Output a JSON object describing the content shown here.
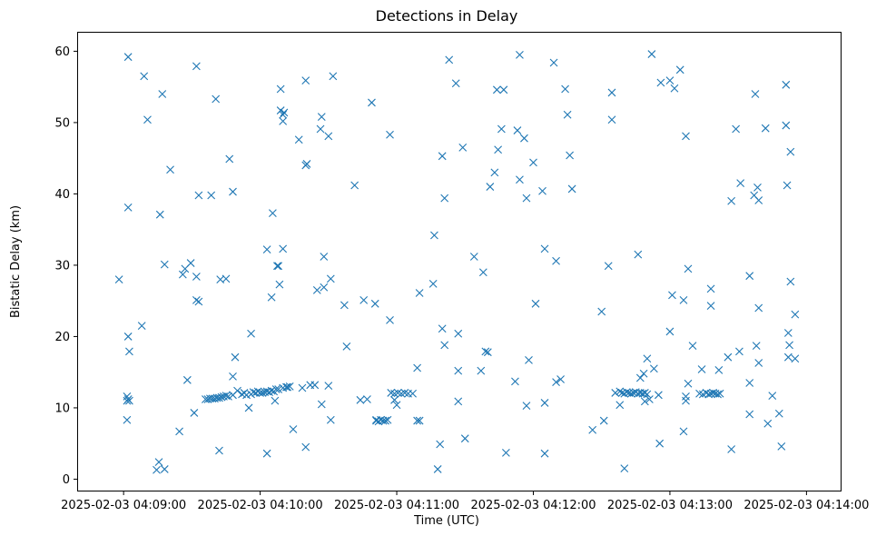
{
  "chart_data": {
    "type": "scatter",
    "title": "Detections in Delay",
    "xlabel": "Time (UTC)",
    "ylabel": "Bistatic Delay (km)",
    "marker": "x",
    "color": "#1f77b4",
    "x_unit": "seconds after 2025-02-03 04:09:00",
    "xlim": [
      -20,
      315
    ],
    "ylim": [
      -1.6,
      62.6
    ],
    "x_ticks": [
      {
        "value": 0,
        "label": "2025-02-03 04:09:00"
      },
      {
        "value": 60,
        "label": "2025-02-03 04:10:00"
      },
      {
        "value": 120,
        "label": "2025-02-03 04:11:00"
      },
      {
        "value": 180,
        "label": "2025-02-03 04:12:00"
      },
      {
        "value": 240,
        "label": "2025-02-03 04:13:00"
      },
      {
        "value": 300,
        "label": "2025-02-03 04:14:00"
      }
    ],
    "y_ticks": [
      {
        "value": 0,
        "label": "0"
      },
      {
        "value": 10,
        "label": "10"
      },
      {
        "value": 20,
        "label": "20"
      },
      {
        "value": 30,
        "label": "30"
      },
      {
        "value": 40,
        "label": "40"
      },
      {
        "value": 50,
        "label": "50"
      },
      {
        "value": 60,
        "label": "60"
      }
    ],
    "points": [
      [
        -2,
        28
      ],
      [
        2,
        59.2
      ],
      [
        2,
        38.1
      ],
      [
        1.5,
        11.6
      ],
      [
        1.5,
        11
      ],
      [
        2,
        11.2
      ],
      [
        2.5,
        11
      ],
      [
        1.5,
        8.3
      ],
      [
        2,
        20
      ],
      [
        2.5,
        17.9
      ],
      [
        8,
        21.5
      ],
      [
        9,
        56.5
      ],
      [
        10.5,
        50.4
      ],
      [
        14.5,
        1.3
      ],
      [
        15.5,
        2.4
      ],
      [
        16,
        37.1
      ],
      [
        17,
        54
      ],
      [
        18,
        30.1
      ],
      [
        18,
        1.4
      ],
      [
        20.5,
        43.4
      ],
      [
        24.5,
        6.7
      ],
      [
        26,
        28.7
      ],
      [
        27,
        29.5
      ],
      [
        28,
        13.9
      ],
      [
        29.5,
        30.3
      ],
      [
        31,
        9.3
      ],
      [
        32,
        57.9
      ],
      [
        32,
        28.4
      ],
      [
        32,
        25.1
      ],
      [
        33,
        24.9
      ],
      [
        33,
        39.8
      ],
      [
        38.5,
        39.8
      ],
      [
        40.5,
        53.3
      ],
      [
        42,
        4
      ],
      [
        42.5,
        28
      ],
      [
        45,
        28.1
      ],
      [
        46.5,
        44.9
      ],
      [
        48,
        40.3
      ],
      [
        48,
        14.4
      ],
      [
        49,
        17.1
      ],
      [
        63,
        32.2
      ],
      [
        63,
        3.6
      ],
      [
        65.5,
        37.3
      ],
      [
        65,
        25.5
      ],
      [
        66.5,
        11
      ],
      [
        67.5,
        29.9
      ],
      [
        68.5,
        27.3
      ],
      [
        69,
        54.7
      ],
      [
        69,
        51.7
      ],
      [
        70,
        32.3
      ],
      [
        70,
        50.2
      ],
      [
        70.5,
        51.4
      ],
      [
        70,
        51.1
      ],
      [
        72,
        12.9
      ],
      [
        74.5,
        7
      ],
      [
        77,
        47.6
      ],
      [
        78.5,
        12.8
      ],
      [
        80,
        55.9
      ],
      [
        80,
        4.5
      ],
      [
        80,
        44
      ],
      [
        80.5,
        44.2
      ],
      [
        82,
        13.2
      ],
      [
        84,
        13.2
      ],
      [
        85,
        26.5
      ],
      [
        87,
        50.8
      ],
      [
        86.5,
        49.1
      ],
      [
        87,
        10.5
      ],
      [
        88,
        31.2
      ],
      [
        88,
        26.9
      ],
      [
        90,
        48.1
      ],
      [
        91,
        8.3
      ],
      [
        91,
        28.1
      ],
      [
        92,
        56.5
      ],
      [
        97,
        24.4
      ],
      [
        98,
        18.6
      ],
      [
        101.5,
        41.2
      ],
      [
        104,
        11.1
      ],
      [
        105.5,
        25.1
      ],
      [
        107,
        11.2
      ],
      [
        109,
        52.8
      ],
      [
        110.5,
        24.6
      ],
      [
        111,
        8.3
      ],
      [
        111,
        8.2
      ],
      [
        112,
        8.1
      ],
      [
        113,
        8.3
      ],
      [
        114,
        8.2
      ],
      [
        115,
        8.2
      ],
      [
        116,
        8.3
      ],
      [
        117,
        22.3
      ],
      [
        117,
        48.3
      ],
      [
        119,
        11.1
      ],
      [
        120,
        10.4
      ],
      [
        117.5,
        12.1
      ],
      [
        119,
        12
      ],
      [
        120.5,
        12.1
      ],
      [
        122,
        12
      ],
      [
        123.5,
        12.1
      ],
      [
        125,
        12
      ],
      [
        127,
        12
      ],
      [
        129,
        15.6
      ],
      [
        129,
        8.2
      ],
      [
        130,
        8.2
      ],
      [
        130,
        26.1
      ],
      [
        136.5,
        34.2
      ],
      [
        136,
        27.4
      ],
      [
        138,
        1.4
      ],
      [
        139,
        4.9
      ],
      [
        140,
        45.3
      ],
      [
        140,
        21.1
      ],
      [
        141,
        18.8
      ],
      [
        141,
        39.4
      ],
      [
        143,
        58.8
      ],
      [
        146,
        55.5
      ],
      [
        147,
        10.9
      ],
      [
        147,
        15.2
      ],
      [
        147,
        20.4
      ],
      [
        149,
        46.5
      ],
      [
        150,
        5.7
      ],
      [
        154,
        31.2
      ],
      [
        158,
        29
      ],
      [
        159,
        17.9
      ],
      [
        160,
        17.8
      ],
      [
        161,
        41
      ],
      [
        157,
        15.2
      ],
      [
        163,
        43
      ],
      [
        164,
        54.6
      ],
      [
        164.5,
        46.2
      ],
      [
        166,
        49.1
      ],
      [
        167,
        54.6
      ],
      [
        168,
        3.7
      ],
      [
        172,
        13.7
      ],
      [
        173,
        48.9
      ],
      [
        174,
        42
      ],
      [
        174,
        59.5
      ],
      [
        176,
        47.8
      ],
      [
        177,
        39.4
      ],
      [
        177,
        10.3
      ],
      [
        178,
        16.7
      ],
      [
        180,
        44.4
      ],
      [
        181,
        24.6
      ],
      [
        184,
        40.4
      ],
      [
        185,
        32.3
      ],
      [
        185,
        10.7
      ],
      [
        185,
        3.6
      ],
      [
        189,
        58.4
      ],
      [
        190,
        30.6
      ],
      [
        190,
        13.6
      ],
      [
        192,
        14
      ],
      [
        194,
        54.7
      ],
      [
        195,
        51.1
      ],
      [
        196,
        45.4
      ],
      [
        197,
        40.7
      ],
      [
        206,
        6.9
      ],
      [
        210,
        23.5
      ],
      [
        211,
        8.2
      ],
      [
        213,
        29.9
      ],
      [
        214.5,
        50.4
      ],
      [
        214.5,
        54.2
      ],
      [
        216,
        12.1
      ],
      [
        218,
        10.4
      ],
      [
        218,
        12.3
      ],
      [
        219,
        12.1
      ],
      [
        220,
        12
      ],
      [
        220,
        1.5
      ],
      [
        221,
        12.2
      ],
      [
        222,
        12.1
      ],
      [
        223,
        12
      ],
      [
        224,
        12.1
      ],
      [
        225,
        12.2
      ],
      [
        226,
        12
      ],
      [
        227,
        12.1
      ],
      [
        228,
        12
      ],
      [
        229,
        12.1
      ],
      [
        230,
        11.9
      ],
      [
        226,
        31.5
      ],
      [
        227,
        14.2
      ],
      [
        228.5,
        14.8
      ],
      [
        229,
        10.9
      ],
      [
        230,
        16.9
      ],
      [
        231,
        11.2
      ],
      [
        232,
        59.6
      ],
      [
        233,
        15.5
      ],
      [
        235,
        11.8
      ],
      [
        235.5,
        5
      ],
      [
        236,
        55.6
      ],
      [
        240,
        20.7
      ],
      [
        240,
        55.9
      ],
      [
        241,
        25.8
      ],
      [
        242,
        54.8
      ],
      [
        244.5,
        57.4
      ],
      [
        246,
        6.7
      ],
      [
        246,
        25.1
      ],
      [
        247,
        11.6
      ],
      [
        247,
        11
      ],
      [
        247,
        48.1
      ],
      [
        248,
        29.5
      ],
      [
        248,
        13.4
      ],
      [
        250,
        18.7
      ],
      [
        254,
        15.4
      ],
      [
        253,
        12
      ],
      [
        254.5,
        11.9
      ],
      [
        256,
        12.1
      ],
      [
        257,
        11.9
      ],
      [
        258,
        12
      ],
      [
        259,
        12.1
      ],
      [
        260,
        12
      ],
      [
        261,
        11.9
      ],
      [
        262,
        12
      ],
      [
        258,
        26.7
      ],
      [
        258,
        24.3
      ],
      [
        261.5,
        15.3
      ],
      [
        265.5,
        17.1
      ],
      [
        267,
        39
      ],
      [
        267,
        4.2
      ],
      [
        269,
        49.1
      ],
      [
        270.5,
        17.9
      ],
      [
        271,
        41.5
      ],
      [
        275,
        13.5
      ],
      [
        275,
        28.5
      ],
      [
        275,
        9.1
      ],
      [
        277,
        39.8
      ],
      [
        277.5,
        54
      ],
      [
        278,
        18.7
      ],
      [
        278.5,
        40.9
      ],
      [
        279,
        16.3
      ],
      [
        279,
        24
      ],
      [
        279,
        39.1
      ],
      [
        282,
        49.2
      ],
      [
        283,
        7.8
      ],
      [
        285,
        11.7
      ],
      [
        288,
        9.2
      ],
      [
        289,
        4.6
      ],
      [
        291,
        55.3
      ],
      [
        291,
        49.6
      ],
      [
        291.5,
        41.2
      ],
      [
        292,
        20.5
      ],
      [
        292,
        17.1
      ],
      [
        292.5,
        18.8
      ],
      [
        293,
        27.7
      ],
      [
        293,
        45.9
      ],
      [
        295,
        16.9
      ],
      [
        295,
        23.1
      ],
      [
        90,
        13.1
      ],
      [
        68,
        12.6
      ],
      [
        64,
        12.2
      ],
      [
        66,
        12.3
      ],
      [
        62,
        12.2
      ],
      [
        60,
        12.1
      ],
      [
        58,
        12.1
      ],
      [
        56,
        11.9
      ],
      [
        55,
        10
      ],
      [
        54,
        11.8
      ],
      [
        53,
        12.1
      ],
      [
        50,
        12.4
      ],
      [
        48,
        11.8
      ],
      [
        46,
        11.6
      ],
      [
        44,
        11.6
      ],
      [
        42,
        11.4
      ],
      [
        40,
        11.3
      ],
      [
        38,
        11.3
      ],
      [
        36,
        11.2
      ],
      [
        56,
        20.4
      ],
      [
        68,
        29.9
      ],
      [
        71.5,
        12.9
      ],
      [
        73,
        13
      ],
      [
        70,
        12.8
      ],
      [
        67,
        12.6
      ],
      [
        65,
        12.4
      ],
      [
        63,
        12.3
      ],
      [
        61,
        12.1
      ],
      [
        59,
        12.3
      ],
      [
        57,
        12.2
      ],
      [
        52,
        11.9
      ],
      [
        45,
        11.7
      ],
      [
        43,
        11.5
      ],
      [
        41,
        11.4
      ],
      [
        39,
        11.3
      ],
      [
        37,
        11.2
      ]
    ]
  }
}
